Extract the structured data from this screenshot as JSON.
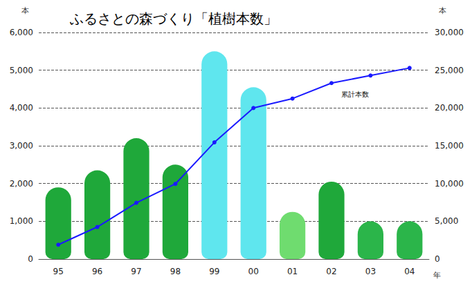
{
  "chart_data": {
    "type": "bar",
    "title": "ふるさとの森づくり「植樹本数」",
    "categories": [
      "95",
      "96",
      "97",
      "98",
      "99",
      "00",
      "01",
      "02",
      "03",
      "04"
    ],
    "x_label": "年",
    "y_label": "本",
    "y2_label": "本",
    "series": [
      {
        "type": "bar",
        "colors": [
          "#1fa83a",
          "#1fa83a",
          "#1fa83a",
          "#1fa83a",
          "#5fe6ee",
          "#5fe6ee",
          "#6fdc6f",
          "#1fa83a",
          "#2bb54a",
          "#2bb54a"
        ],
        "values": [
          1900,
          2350,
          3200,
          2500,
          5500,
          4550,
          1250,
          2050,
          1000,
          1000
        ]
      },
      {
        "name": "累計本数",
        "type": "line",
        "axis": "y2",
        "color": "#1a1aff",
        "marker": "circle",
        "values": [
          1900,
          4250,
          7450,
          9950,
          15450,
          20000,
          21250,
          23300,
          24300,
          25300
        ]
      }
    ],
    "ylim": [
      0,
      6000
    ],
    "yticks": [
      0,
      {
        "value": 1000,
        "label": "1,000"
      },
      {
        "value": 2000,
        "label": "2,000"
      },
      {
        "value": 3000,
        "label": "3,000"
      },
      {
        "value": 4000,
        "label": "4,000"
      },
      {
        "value": 5000,
        "label": "5,000"
      },
      {
        "value": 6000,
        "label": "6,000"
      }
    ],
    "y2lim": [
      0,
      30000
    ],
    "y2ticks": [
      0,
      {
        "value": 5000,
        "label": "5,000"
      },
      {
        "value": 10000,
        "label": "10,000"
      },
      {
        "value": 15000,
        "label": "15,000"
      },
      {
        "value": 20000,
        "label": "20,000"
      },
      {
        "value": 25000,
        "label": "25,000"
      },
      {
        "value": 30000,
        "label": "30,000"
      }
    ],
    "grid": true
  }
}
